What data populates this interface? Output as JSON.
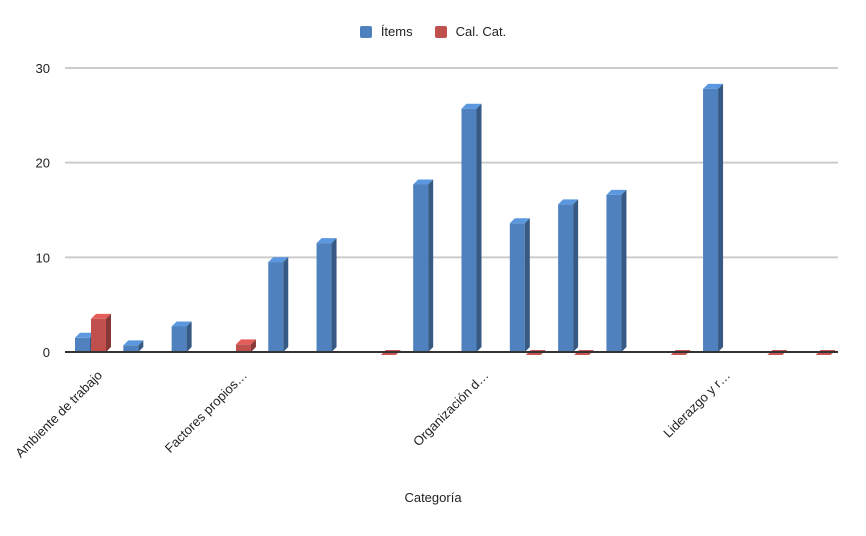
{
  "chart_data": {
    "type": "bar",
    "style": "3d-column",
    "xlabel": "Categoría",
    "ylabel": "",
    "ylim": [
      0,
      30
    ],
    "yticks": [
      0,
      10,
      20,
      30
    ],
    "grid": true,
    "legend_position": "top-center",
    "categories": [
      "Ambiente de trabajo",
      "",
      "",
      "Factores propios…",
      "",
      "",
      "",
      "",
      "Organización d…",
      "",
      "",
      "",
      "",
      "Liderazgo y r…",
      "",
      ""
    ],
    "series": [
      {
        "name": "Ítems",
        "color": "#4e81bd",
        "values": [
          1.5,
          0.7,
          2.7,
          null,
          9.5,
          11.5,
          null,
          17.7,
          25.7,
          13.6,
          15.6,
          16.6,
          null,
          27.8,
          null,
          null
        ]
      },
      {
        "name": "Cal. Cat.",
        "color": "#c0504d",
        "values": [
          3.5,
          null,
          null,
          0.8,
          null,
          null,
          0,
          null,
          null,
          0,
          0,
          null,
          0,
          null,
          0,
          0
        ]
      }
    ]
  }
}
